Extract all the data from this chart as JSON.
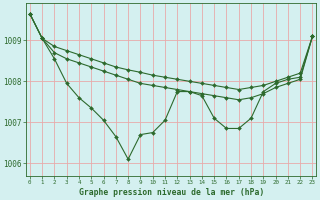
{
  "title": "Graphe pression niveau de la mer (hPa)",
  "bg_color": "#d4f0f0",
  "grid_color": "#e8aaaa",
  "line_color": "#2d6a2d",
  "x": [
    0,
    1,
    2,
    3,
    4,
    5,
    6,
    7,
    8,
    9,
    10,
    11,
    12,
    13,
    14,
    15,
    16,
    17,
    18,
    19,
    20,
    21,
    22,
    23
  ],
  "line1": [
    1009.65,
    1009.05,
    1008.85,
    1008.75,
    1008.65,
    1008.55,
    1008.45,
    1008.35,
    1008.28,
    1008.22,
    1008.15,
    1008.1,
    1008.05,
    1008.0,
    1007.95,
    1007.9,
    1007.85,
    1007.8,
    1007.85,
    1007.9,
    1008.0,
    1008.1,
    1008.2,
    1009.1
  ],
  "line2": [
    1009.65,
    1009.05,
    1008.7,
    1008.55,
    1008.45,
    1008.35,
    1008.25,
    1008.15,
    1008.05,
    1007.95,
    1007.9,
    1007.85,
    1007.8,
    1007.75,
    1007.7,
    1007.65,
    1007.6,
    1007.55,
    1007.6,
    1007.7,
    1007.85,
    1007.95,
    1008.05,
    1009.1
  ],
  "line3": [
    1009.65,
    1009.05,
    1008.55,
    1007.95,
    1007.6,
    1007.35,
    1007.05,
    1006.65,
    1006.1,
    1006.7,
    1006.75,
    1007.05,
    1007.75,
    1007.75,
    1007.65,
    1007.1,
    1006.85,
    1006.85,
    1007.1,
    1007.75,
    1007.95,
    1008.05,
    1008.1,
    1009.1
  ],
  "ylim": [
    1005.7,
    1009.9
  ],
  "yticks": [
    1006,
    1007,
    1008,
    1009
  ],
  "xticks": [
    0,
    1,
    2,
    3,
    4,
    5,
    6,
    7,
    8,
    9,
    10,
    11,
    12,
    13,
    14,
    15,
    16,
    17,
    18,
    19,
    20,
    21,
    22,
    23
  ]
}
